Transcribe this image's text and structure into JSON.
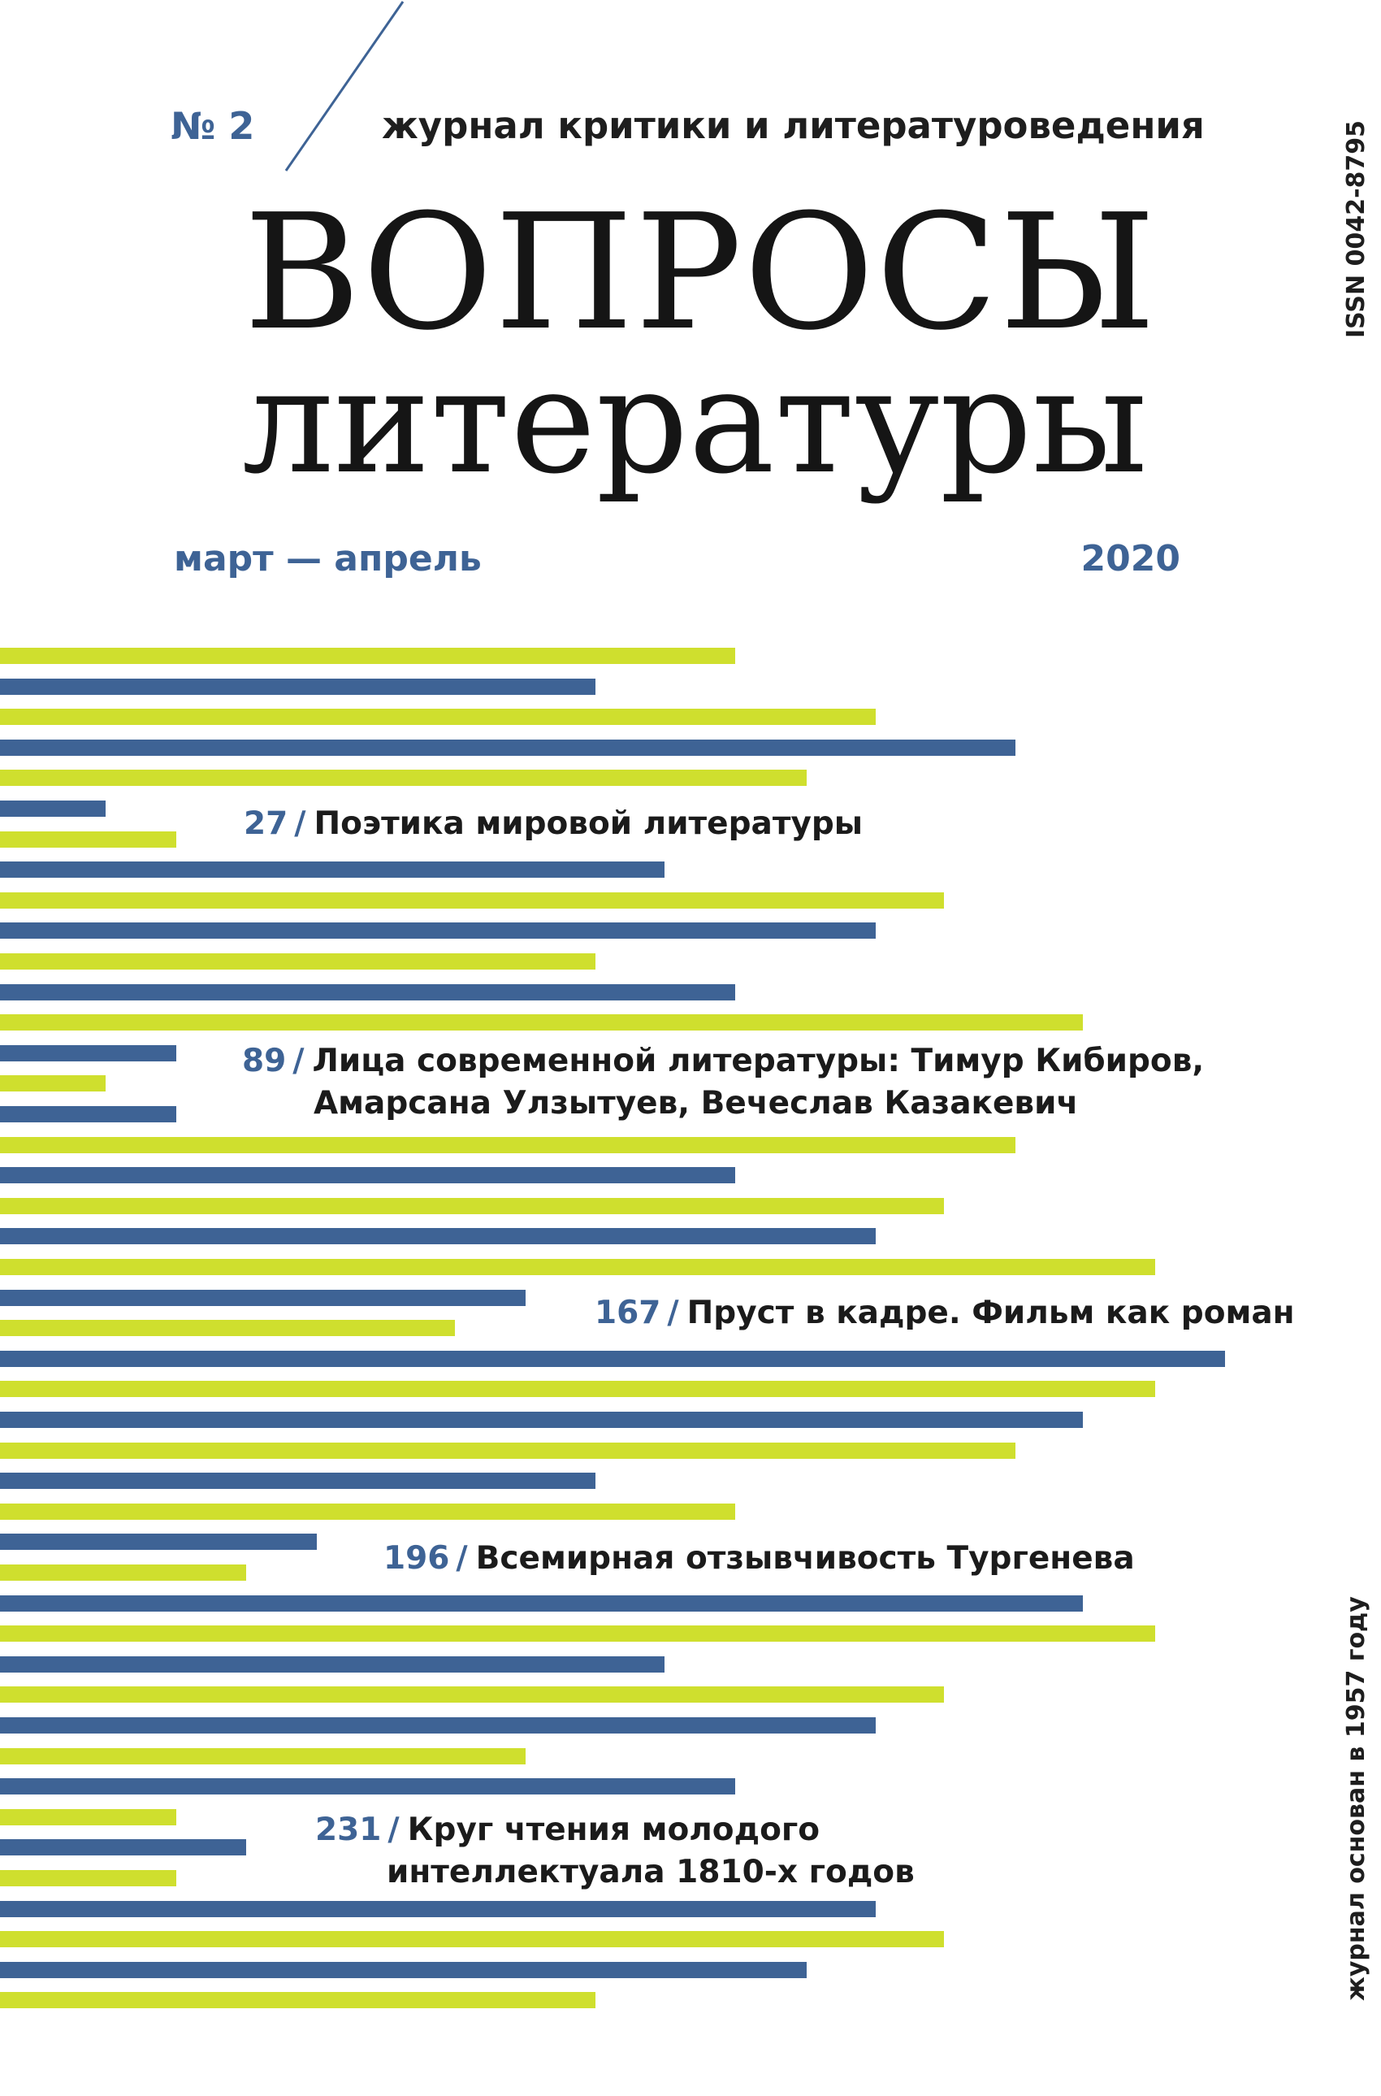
{
  "masthead": {
    "issue": "№ 2",
    "subtitle": "журнал критики и литературоведения",
    "title_line1": "ВОПРОСЫ",
    "title_line2": "литературы",
    "period": "март — апрель",
    "year": "2020",
    "issn": "ISSN 0042-8795",
    "founded": "журнал основан в 1957 году"
  },
  "colors": {
    "blue": "#3e6395",
    "lime": "#cfdf2e",
    "text": "#1b1b1b",
    "background": "#ffffff"
  },
  "toc": [
    {
      "page": "27",
      "sep": "/",
      "lines": [
        "Поэтика мировой литературы"
      ]
    },
    {
      "page": "89",
      "sep": "/",
      "lines": [
        "Лица современной литературы: Тимур Кибиров,",
        "Амарсана Улзытуев, Вечеслав Казакевич"
      ]
    },
    {
      "page": "167",
      "sep": "/",
      "lines": [
        "Пруст в кадре. Фильм как роман"
      ]
    },
    {
      "page": "196",
      "sep": "/",
      "lines": [
        "Всемирная отзывчивость Тургенева"
      ]
    },
    {
      "page": "231",
      "sep": "/",
      "lines": [
        "Круг чтения молодого",
        "интеллектуала 1810-х годов"
      ]
    }
  ]
}
